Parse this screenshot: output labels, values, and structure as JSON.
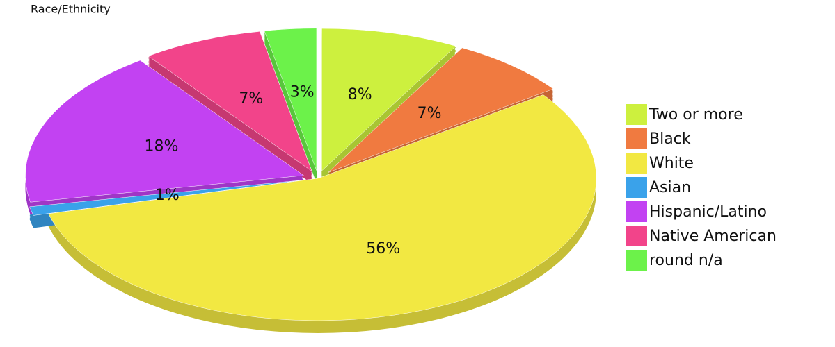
{
  "chart_data": {
    "type": "pie",
    "title": "Race/Ethnicity",
    "categories": [
      "Two or more",
      "Black",
      "White",
      "Asian",
      "Hispanic/Latino",
      "Native American",
      "round n/a"
    ],
    "values": [
      8,
      7,
      56,
      1,
      18,
      7,
      3
    ],
    "value_labels": [
      "8%",
      "7%",
      "56%",
      "1%",
      "18%",
      "7%",
      "3%"
    ],
    "colors": [
      "#cdf03e",
      "#f07a40",
      "#f2e842",
      "#3aa2ea",
      "#c242f2",
      "#f2448a",
      "#6cf24a"
    ]
  }
}
